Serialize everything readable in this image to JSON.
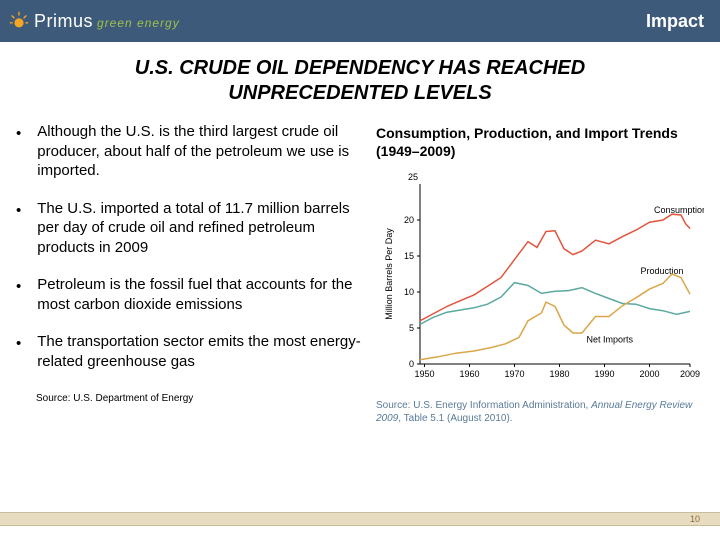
{
  "header": {
    "logo_name": "Primus",
    "logo_tag": "green energy",
    "label": "Impact",
    "bg_color": "#3d5a7a",
    "sun_color": "#f5a623"
  },
  "title_line1": "U.S. CRUDE OIL DEPENDENCY HAS REACHED",
  "title_line2": "UNPRECEDENTED LEVELS",
  "bullets": [
    "Although the U.S. is the third largest crude oil producer, about half of the petroleum we use is imported.",
    "The U.S. imported a total of 11.7 million barrels per day of crude oil and refined petroleum products in 2009",
    "Petroleum is the fossil fuel that accounts for the most carbon dioxide emissions",
    "The transportation sector emits the most energy-related greenhouse gas"
  ],
  "source_note": "Source: U.S. Department of Energy",
  "page_number": "10",
  "chart": {
    "type": "line",
    "title": "Consumption, Production, and Import Trends (1949–2009)",
    "ylabel": "Million Barrels Per Day",
    "ylabel_fontsize": 9,
    "label_fontsize": 9,
    "ytick_25": "25",
    "xlim": [
      1949,
      2009
    ],
    "ylim": [
      0,
      25
    ],
    "ytick_step": 5,
    "yticks": [
      0,
      5,
      10,
      15,
      20,
      25
    ],
    "xticks": [
      1950,
      1960,
      1970,
      1980,
      1990,
      2000,
      2009
    ],
    "background_color": "#ffffff",
    "axis_color": "#000000",
    "grid": false,
    "line_width": 1.5,
    "series": [
      {
        "name": "Consumption",
        "color": "#e2553d",
        "label_x": 2001,
        "label_y": 21,
        "points": [
          [
            1949,
            6.0
          ],
          [
            1952,
            7.0
          ],
          [
            1955,
            8.0
          ],
          [
            1958,
            8.8
          ],
          [
            1961,
            9.6
          ],
          [
            1964,
            10.8
          ],
          [
            1967,
            12.0
          ],
          [
            1970,
            14.5
          ],
          [
            1973,
            17.0
          ],
          [
            1975,
            16.2
          ],
          [
            1977,
            18.4
          ],
          [
            1979,
            18.5
          ],
          [
            1981,
            16.0
          ],
          [
            1983,
            15.2
          ],
          [
            1985,
            15.7
          ],
          [
            1988,
            17.2
          ],
          [
            1991,
            16.7
          ],
          [
            1994,
            17.7
          ],
          [
            1997,
            18.6
          ],
          [
            2000,
            19.7
          ],
          [
            2003,
            20.0
          ],
          [
            2005,
            20.8
          ],
          [
            2007,
            20.7
          ],
          [
            2008,
            19.5
          ],
          [
            2009,
            18.8
          ]
        ]
      },
      {
        "name": "Production",
        "color": "#5aa9a0",
        "label_x": 1998,
        "label_y": 12.5,
        "points": [
          [
            1949,
            5.5
          ],
          [
            1952,
            6.5
          ],
          [
            1955,
            7.2
          ],
          [
            1958,
            7.5
          ],
          [
            1961,
            7.8
          ],
          [
            1964,
            8.3
          ],
          [
            1967,
            9.3
          ],
          [
            1970,
            11.3
          ],
          [
            1973,
            10.9
          ],
          [
            1976,
            9.8
          ],
          [
            1979,
            10.1
          ],
          [
            1982,
            10.2
          ],
          [
            1985,
            10.6
          ],
          [
            1988,
            9.8
          ],
          [
            1991,
            9.1
          ],
          [
            1994,
            8.4
          ],
          [
            1997,
            8.3
          ],
          [
            2000,
            7.7
          ],
          [
            2003,
            7.4
          ],
          [
            2006,
            6.9
          ],
          [
            2009,
            7.3
          ]
        ]
      },
      {
        "name": "Net Imports",
        "color": "#d9a648",
        "label_x": 1986,
        "label_y": 3,
        "points": [
          [
            1949,
            0.6
          ],
          [
            1953,
            1.0
          ],
          [
            1957,
            1.5
          ],
          [
            1961,
            1.8
          ],
          [
            1965,
            2.3
          ],
          [
            1968,
            2.8
          ],
          [
            1971,
            3.7
          ],
          [
            1973,
            6.0
          ],
          [
            1976,
            7.1
          ],
          [
            1977,
            8.6
          ],
          [
            1979,
            8.0
          ],
          [
            1981,
            5.4
          ],
          [
            1983,
            4.3
          ],
          [
            1985,
            4.3
          ],
          [
            1988,
            6.6
          ],
          [
            1991,
            6.6
          ],
          [
            1994,
            8.1
          ],
          [
            1997,
            9.2
          ],
          [
            2000,
            10.4
          ],
          [
            2003,
            11.2
          ],
          [
            2005,
            12.5
          ],
          [
            2007,
            12.0
          ],
          [
            2009,
            9.7
          ]
        ]
      }
    ],
    "source_prefix": "Source: U.S. Energy Information Administration, ",
    "source_italic": "Annual Energy Review 2009",
    "source_suffix": ", Table 5.1 (August 2010)."
  }
}
